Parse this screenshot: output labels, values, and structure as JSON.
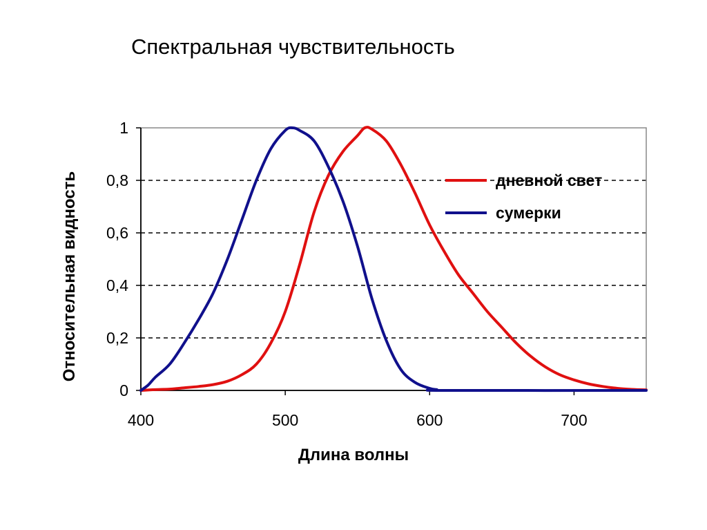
{
  "title": "Спектральная чувствительность",
  "chart_data": {
    "type": "line",
    "xlabel": "Длина волны",
    "ylabel": "Относительная видность",
    "xlim": [
      400,
      750
    ],
    "ylim": [
      0,
      1
    ],
    "xticks": [
      "400",
      "500",
      "600",
      "700"
    ],
    "yticks": [
      "0",
      "0,2",
      "0,4",
      "0,6",
      "0,8",
      "1"
    ],
    "grid": "horizontal dashed",
    "legend": "top-right",
    "series": [
      {
        "name": "дневной свет",
        "color": "#e01010",
        "points": [
          [
            400,
            0
          ],
          [
            410,
            0.003
          ],
          [
            420,
            0.005
          ],
          [
            430,
            0.01
          ],
          [
            440,
            0.015
          ],
          [
            450,
            0.022
          ],
          [
            460,
            0.035
          ],
          [
            470,
            0.06
          ],
          [
            480,
            0.1
          ],
          [
            490,
            0.18
          ],
          [
            500,
            0.3
          ],
          [
            510,
            0.48
          ],
          [
            520,
            0.68
          ],
          [
            530,
            0.82
          ],
          [
            540,
            0.91
          ],
          [
            550,
            0.97
          ],
          [
            555,
            1.0
          ],
          [
            560,
            0.995
          ],
          [
            570,
            0.95
          ],
          [
            580,
            0.86
          ],
          [
            590,
            0.75
          ],
          [
            600,
            0.63
          ],
          [
            610,
            0.53
          ],
          [
            620,
            0.44
          ],
          [
            630,
            0.37
          ],
          [
            640,
            0.3
          ],
          [
            650,
            0.24
          ],
          [
            660,
            0.18
          ],
          [
            670,
            0.13
          ],
          [
            680,
            0.09
          ],
          [
            690,
            0.06
          ],
          [
            700,
            0.04
          ],
          [
            710,
            0.025
          ],
          [
            720,
            0.015
          ],
          [
            730,
            0.008
          ],
          [
            740,
            0.004
          ],
          [
            750,
            0.002
          ]
        ]
      },
      {
        "name": "сумерки",
        "color": "#10108c",
        "points": [
          [
            400,
            0
          ],
          [
            405,
            0.02
          ],
          [
            410,
            0.05
          ],
          [
            420,
            0.1
          ],
          [
            430,
            0.18
          ],
          [
            440,
            0.27
          ],
          [
            450,
            0.37
          ],
          [
            460,
            0.5
          ],
          [
            470,
            0.65
          ],
          [
            480,
            0.8
          ],
          [
            490,
            0.92
          ],
          [
            500,
            0.99
          ],
          [
            505,
            1.0
          ],
          [
            510,
            0.99
          ],
          [
            520,
            0.95
          ],
          [
            530,
            0.85
          ],
          [
            540,
            0.72
          ],
          [
            550,
            0.55
          ],
          [
            560,
            0.35
          ],
          [
            570,
            0.19
          ],
          [
            580,
            0.08
          ],
          [
            590,
            0.03
          ],
          [
            600,
            0.008
          ],
          [
            605,
            0.003
          ],
          [
            610,
            0
          ],
          [
            750,
            0
          ]
        ]
      }
    ]
  }
}
